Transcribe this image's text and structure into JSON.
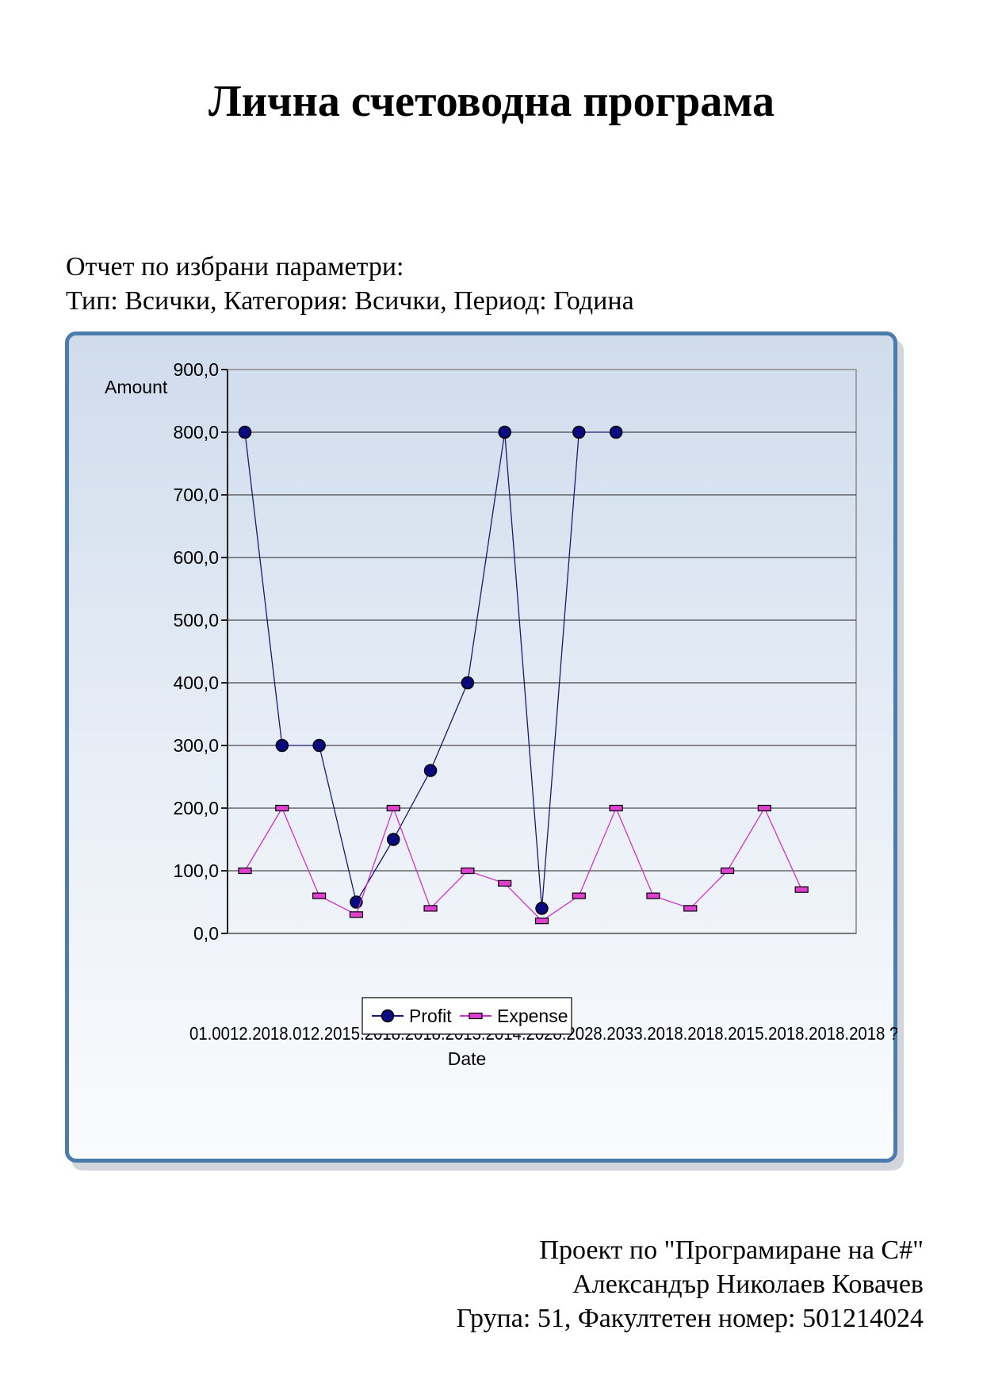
{
  "page": {
    "title": "Лична счетоводна програма",
    "params_line1": "Отчет по избрани параметри:",
    "params_line2": "Тип: Всички, Категория: Всички, Период: Година",
    "footer_line1": "Проект по \"Програмиране на C#\"",
    "footer_line2": "Александър Николаев Ковачев",
    "footer_line3": "Група: 51, Факултетен номер: 501214024"
  },
  "chart_data": {
    "type": "line",
    "title": "",
    "xlabel": "Date",
    "ylabel": "Amount",
    "ylim": [
      0,
      900
    ],
    "yticks": [
      0,
      100,
      200,
      300,
      400,
      500,
      600,
      700,
      800,
      900
    ],
    "ytick_labels": [
      "0,0",
      "100,0",
      "200,0",
      "300,0",
      "400,0",
      "500,0",
      "600,0",
      "700,0",
      "800,0",
      "900,0"
    ],
    "x_tick_text": "01.0012.2018.012.2015.2018.2018.2013.2014.2028.2028.2033.2018.2018.2015.2018.2018.2018 ?.",
    "grid": true,
    "legend_position": "bottom-center",
    "x_count": 17,
    "series": [
      {
        "name": "Profit",
        "marker": "circle",
        "color": "#1a1a6e",
        "fill": "#0a0a80",
        "values": [
          800,
          300,
          300,
          50,
          150,
          260,
          400,
          800,
          40,
          800,
          800,
          null,
          null,
          null,
          null,
          null,
          null
        ]
      },
      {
        "name": "Expense",
        "marker": "rect",
        "color": "#cc33cc",
        "fill": "#e040d0",
        "values": [
          100,
          200,
          60,
          30,
          200,
          40,
          100,
          80,
          20,
          60,
          200,
          60,
          40,
          100,
          200,
          70,
          null
        ]
      }
    ]
  }
}
